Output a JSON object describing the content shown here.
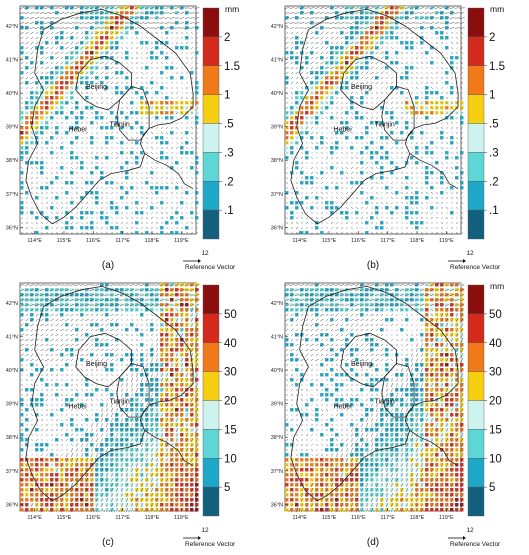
{
  "panels": [
    {
      "label": "(a)",
      "legend_unit": "mm",
      "legend_ticks": [
        "2",
        "1.5",
        "1",
        ".5",
        ".3",
        ".2",
        ".1"
      ],
      "field": "precip_small"
    },
    {
      "label": "(b)",
      "legend_unit": "mm",
      "legend_ticks": [
        "2",
        "1.5",
        "1",
        ".5",
        ".3",
        ".2",
        ".1"
      ],
      "field": "precip_small"
    },
    {
      "label": "(c)",
      "legend_unit": "",
      "legend_ticks": [
        "50",
        "40",
        "30",
        "20",
        "15",
        "10",
        "5"
      ],
      "field": "precip_large"
    },
    {
      "label": "(d)",
      "legend_unit": "mm",
      "legend_ticks": [
        "50",
        "40",
        "30",
        "20",
        "15",
        "10",
        "5"
      ],
      "field": "precip_large"
    }
  ],
  "legend_colors": [
    "#8b0e0e",
    "#d42a1c",
    "#f07a1a",
    "#f5cf10",
    "#cdf3ef",
    "#5fd6d6",
    "#1fa7c8",
    "#13607e"
  ],
  "lat_labels": [
    "42°N",
    "41°N",
    "40°N",
    "39°N",
    "38°N",
    "37°N",
    "36°N"
  ],
  "lon_labels": [
    "114°E",
    "115°E",
    "116°E",
    "117°E",
    "118°E",
    "119°E"
  ],
  "place_labels": {
    "beijing": "Beijing",
    "tianjin": "Tianjin",
    "hebei": "Hebei"
  },
  "reference_vector": {
    "magnitude": "12",
    "label": "Reference Vector"
  }
}
